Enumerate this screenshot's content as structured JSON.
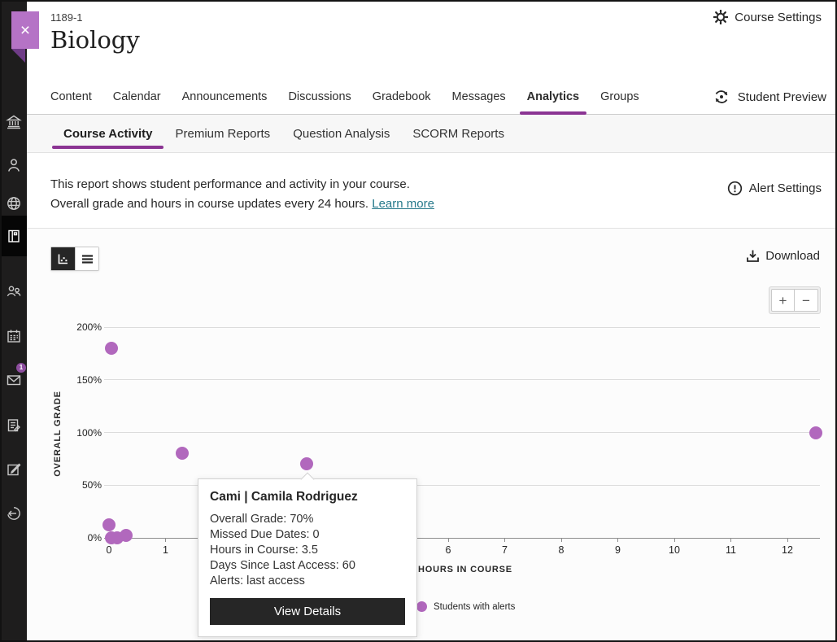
{
  "colors": {
    "accent_purple": "#8b3493",
    "point_purple": "#b168bd",
    "bookmark_purple": "#b573c6",
    "link_teal": "#26798b",
    "dark_button": "#262626"
  },
  "sidebar": {
    "items": [
      {
        "name": "institution"
      },
      {
        "name": "profile"
      },
      {
        "name": "activity-stream"
      },
      {
        "name": "courses",
        "selected": true
      },
      {
        "name": "organizations"
      },
      {
        "name": "calendar"
      },
      {
        "name": "messages",
        "badge": "1"
      },
      {
        "name": "grades"
      },
      {
        "name": "tools"
      },
      {
        "name": "sign-out"
      }
    ],
    "mail_badge": "1"
  },
  "header": {
    "course_id": "1189-1",
    "course_title": "Biology",
    "course_settings_label": "Course Settings"
  },
  "nav": {
    "tabs": [
      {
        "label": "Content"
      },
      {
        "label": "Calendar"
      },
      {
        "label": "Announcements"
      },
      {
        "label": "Discussions"
      },
      {
        "label": "Gradebook"
      },
      {
        "label": "Messages"
      },
      {
        "label": "Analytics",
        "active": true
      },
      {
        "label": "Groups"
      }
    ],
    "student_preview_label": "Student Preview"
  },
  "subnav": {
    "tabs": [
      {
        "label": "Course Activity",
        "active": true
      },
      {
        "label": "Premium Reports"
      },
      {
        "label": "Question Analysis"
      },
      {
        "label": "SCORM Reports"
      }
    ]
  },
  "report": {
    "description_line1": "This report shows student performance and activity in your course.",
    "description_line2": "Overall grade and hours in course updates every 24 hours.",
    "learn_more_label": "Learn more",
    "alert_settings_label": "Alert Settings",
    "download_label": "Download",
    "zoom_in_label": "+",
    "zoom_out_label": "−"
  },
  "chart_data": {
    "type": "scatter",
    "xlabel": "HOURS IN COURSE",
    "ylabel": "OVERALL GRADE",
    "xlim": [
      0,
      12.6
    ],
    "ylim": [
      0,
      200
    ],
    "x_ticks": [
      0,
      1,
      2,
      3,
      4,
      5,
      6,
      7,
      8,
      9,
      10,
      11,
      12
    ],
    "y_ticks": [
      {
        "label": "0%",
        "value": 0
      },
      {
        "label": "50%",
        "value": 50
      },
      {
        "label": "100%",
        "value": 100
      },
      {
        "label": "150%",
        "value": 150
      },
      {
        "label": "200%",
        "value": 200
      }
    ],
    "grid": true,
    "legend_position": "bottom",
    "series": [
      {
        "name": "Students with alerts",
        "color": "#b168bd",
        "points": [
          {
            "hours": 0.05,
            "grade": 180
          },
          {
            "hours": 1.3,
            "grade": 80
          },
          {
            "hours": 3.5,
            "grade": 70,
            "student": "Cami | Camila Rodriguez"
          },
          {
            "hours": 12.5,
            "grade": 100
          },
          {
            "hours": 0,
            "grade": 12
          },
          {
            "hours": 0.05,
            "grade": 0
          },
          {
            "hours": 0.15,
            "grade": 0
          },
          {
            "hours": 0.3,
            "grade": 2
          }
        ]
      }
    ],
    "legend": [
      {
        "label": "Students with alerts",
        "color": "#b168bd"
      }
    ]
  },
  "tooltip": {
    "title": "Cami | Camila Rodriguez",
    "rows": [
      "Overall Grade: 70%",
      "Missed Due Dates: 0",
      "Hours in Course: 3.5",
      "Days Since Last Access: 60",
      "Alerts: last access"
    ],
    "button_label": "View Details"
  }
}
